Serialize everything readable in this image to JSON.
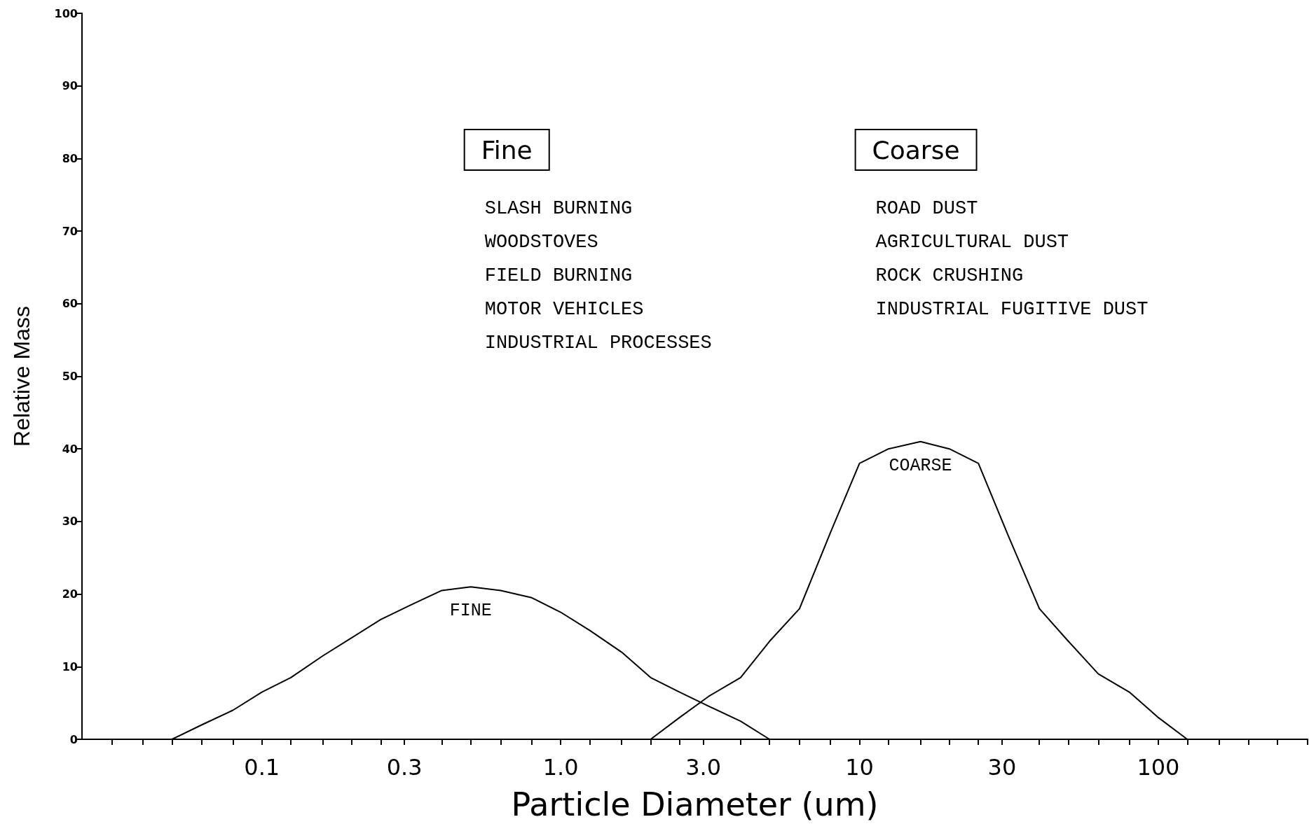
{
  "chart_data": {
    "type": "line",
    "xlabel": "Particle Diameter (um)",
    "ylabel": "Relative Mass",
    "log": "x",
    "marker": "none",
    "line_style": "solid",
    "xlim": [
      0.025,
      316
    ],
    "xticks": [
      {
        "value": 0.0315,
        "label": null
      },
      {
        "value": 0.04,
        "label": null
      },
      {
        "value": 0.05,
        "label": null
      },
      {
        "value": 0.063,
        "label": null
      },
      {
        "value": 0.08,
        "label": null
      },
      0.1,
      {
        "value": 0.125,
        "label": null
      },
      {
        "value": 0.16,
        "label": null
      },
      {
        "value": 0.2,
        "label": null
      },
      {
        "value": 0.25,
        "label": null
      },
      0.3,
      {
        "value": 0.4,
        "label": null
      },
      {
        "value": 0.5,
        "label": null
      },
      {
        "value": 0.63,
        "label": null
      },
      {
        "value": 0.8,
        "label": null
      },
      {
        "value": 1,
        "label": "1.0"
      },
      {
        "value": 1.25,
        "label": null
      },
      {
        "value": 1.6,
        "label": null
      },
      {
        "value": 2,
        "label": null
      },
      {
        "value": 2.5,
        "label": null
      },
      {
        "value": 3,
        "label": "3.0"
      },
      {
        "value": 4,
        "label": null
      },
      {
        "value": 5,
        "label": null
      },
      {
        "value": 6.3,
        "label": null
      },
      {
        "value": 8,
        "label": null
      },
      10,
      {
        "value": 12.5,
        "label": null
      },
      {
        "value": 16,
        "label": null
      },
      {
        "value": 20,
        "label": null
      },
      {
        "value": 25,
        "label": null
      },
      30,
      {
        "value": 40,
        "label": null
      },
      {
        "value": 50,
        "label": null
      },
      {
        "value": 63,
        "label": null
      },
      {
        "value": 80,
        "label": null
      },
      100,
      {
        "value": 125,
        "label": null
      },
      {
        "value": 160,
        "label": null
      },
      {
        "value": 200,
        "label": null
      },
      {
        "value": 250,
        "label": null
      },
      {
        "value": 316,
        "label": null
      }
    ],
    "ylim": [
      0,
      100
    ],
    "yticks": [
      0,
      10,
      20,
      30,
      40,
      50,
      60,
      70,
      80,
      90,
      100
    ],
    "annotations": [
      "Fine\nSLASH BURNING\nWOODSTOVES\nFIELD BURNING\nMOTOR VEHICLES\nINDUSTRIAL PROCESSES",
      "Coarse\nROAD DUST\nAGRICULTURAL DUST\nROCK CRUSHING\nINDUSTRIAL FUGITIVE DUST"
    ],
    "series": [
      {
        "name": "FINE",
        "color": "#000000",
        "x": [
          0.05,
          0.063,
          0.08,
          0.1,
          0.125,
          0.16,
          0.2,
          0.25,
          0.315,
          0.4,
          0.5,
          0.63,
          0.8,
          1,
          1.25,
          1.6,
          2,
          2.5,
          3.15,
          4,
          5
        ],
        "values": [
          0,
          2,
          4,
          6.5,
          8.5,
          11.5,
          14,
          16.5,
          18.5,
          20.5,
          21,
          20.5,
          19.5,
          17.5,
          15,
          12,
          8.5,
          6.5,
          4.5,
          2.5,
          0
        ]
      },
      {
        "name": "COARSE",
        "color": "#000000",
        "x": [
          2,
          2.5,
          3.15,
          4,
          5,
          6.3,
          8,
          10,
          12.5,
          16,
          20,
          25,
          31.5,
          40,
          50,
          63,
          80,
          100,
          125
        ],
        "values": [
          0,
          3,
          6,
          8.5,
          13.5,
          18,
          28.5,
          38,
          40,
          41,
          40,
          38,
          28,
          18,
          13.5,
          9,
          6.5,
          3,
          0
        ]
      }
    ]
  }
}
